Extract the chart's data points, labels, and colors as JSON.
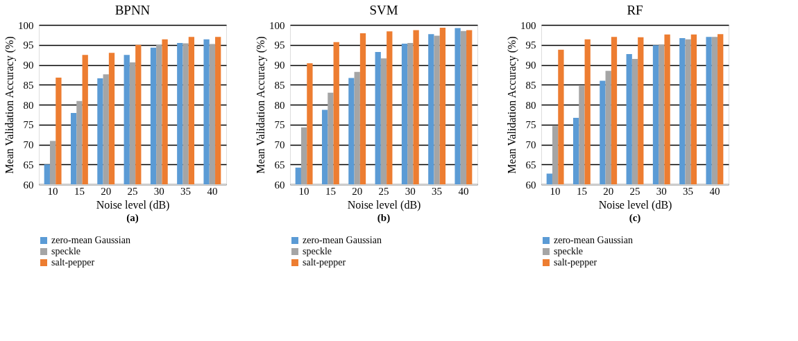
{
  "chart_data": [
    {
      "type": "bar",
      "title": "BPNN",
      "xlabel": "Noise level (dB)",
      "ylabel": "Mean Validation Accuracy (%)",
      "categories": [
        "10",
        "15",
        "20",
        "25",
        "30",
        "35",
        "40"
      ],
      "ylim": [
        60,
        100
      ],
      "yticks": [
        60,
        65,
        70,
        75,
        80,
        85,
        90,
        95,
        100
      ],
      "grid": "y",
      "legend": "bottom",
      "annotations": [
        "(a)"
      ],
      "series": [
        {
          "name": "zero-mean Gaussian",
          "color": "#5b9bd5",
          "values": [
            65.0,
            77.9,
            86.6,
            92.5,
            94.3,
            95.5,
            96.4
          ]
        },
        {
          "name": "speckle",
          "color": "#a5a5a5",
          "values": [
            70.9,
            80.9,
            87.6,
            90.6,
            95.0,
            95.4,
            95.2
          ]
        },
        {
          "name": "salt-pepper",
          "color": "#ed7d31",
          "values": [
            86.8,
            92.5,
            93.0,
            95.0,
            96.4,
            97.0,
            97.0
          ]
        }
      ]
    },
    {
      "type": "bar",
      "title": "SVM",
      "xlabel": "Noise level (dB)",
      "ylabel": "Mean Validation Accuracy (%)",
      "categories": [
        "10",
        "15",
        "20",
        "25",
        "30",
        "35",
        "40"
      ],
      "ylim": [
        60,
        100
      ],
      "yticks": [
        60,
        65,
        70,
        75,
        80,
        85,
        90,
        95,
        100
      ],
      "grid": "y",
      "legend": "bottom",
      "annotations": [
        "(b)"
      ],
      "series": [
        {
          "name": "zero-mean Gaussian",
          "color": "#5b9bd5",
          "values": [
            64.2,
            78.7,
            86.7,
            93.2,
            95.3,
            97.7,
            99.2
          ]
        },
        {
          "name": "speckle",
          "color": "#a5a5a5",
          "values": [
            74.3,
            83.0,
            88.2,
            91.6,
            95.5,
            97.3,
            98.5
          ]
        },
        {
          "name": "salt-pepper",
          "color": "#ed7d31",
          "values": [
            90.4,
            95.7,
            97.9,
            98.4,
            98.7,
            99.3,
            98.7
          ]
        }
      ]
    },
    {
      "type": "bar",
      "title": "RF",
      "xlabel": "Noise level (dB)",
      "ylabel": "Mean Validation Accuracy (%)",
      "categories": [
        "10",
        "15",
        "20",
        "25",
        "30",
        "35",
        "40"
      ],
      "ylim": [
        60,
        100
      ],
      "yticks": [
        60,
        65,
        70,
        75,
        80,
        85,
        90,
        95,
        100
      ],
      "grid": "y",
      "legend": "bottom",
      "annotations": [
        "(c)"
      ],
      "series": [
        {
          "name": "zero-mean Gaussian",
          "color": "#5b9bd5",
          "values": [
            62.7,
            76.7,
            86.0,
            92.7,
            94.9,
            96.7,
            97.0
          ]
        },
        {
          "name": "speckle",
          "color": "#a5a5a5",
          "values": [
            74.7,
            84.7,
            88.5,
            91.5,
            95.1,
            96.4,
            97.0
          ]
        },
        {
          "name": "salt-pepper",
          "color": "#ed7d31",
          "values": [
            93.8,
            96.4,
            97.0,
            96.9,
            97.6,
            97.6,
            97.7
          ]
        }
      ]
    }
  ]
}
